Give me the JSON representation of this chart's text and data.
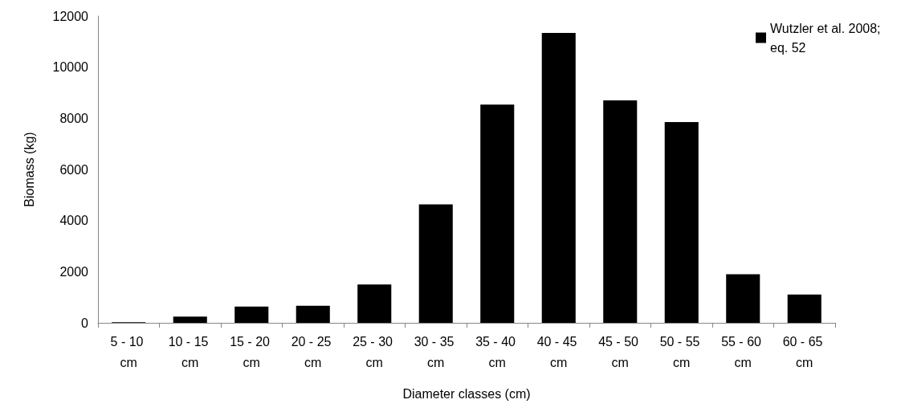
{
  "chart_data": {
    "type": "bar",
    "xlabel": "Diameter classes (cm)",
    "ylabel": "Biomass (kg)",
    "categories": [
      "5 - 10 cm",
      "10 - 15 cm",
      "15 - 20 cm",
      "20 - 25 cm",
      "25 - 30 cm",
      "30 - 35 cm",
      "35 - 40 cm",
      "40 - 45 cm",
      "45 - 50 cm",
      "50 - 55 cm",
      "55 - 60 cm",
      "60 - 65 cm"
    ],
    "series": [
      {
        "name": "Wutzler et al. 2008; eq. 52",
        "color": "#000000",
        "values": [
          20,
          240,
          640,
          670,
          1500,
          4630,
          8540,
          11340,
          8700,
          7850,
          1900,
          1110
        ]
      }
    ],
    "ylim": [
      0,
      12000
    ],
    "yticks": [
      0,
      2000,
      4000,
      6000,
      8000,
      10000,
      12000
    ],
    "grid": false,
    "legend": "top right"
  }
}
